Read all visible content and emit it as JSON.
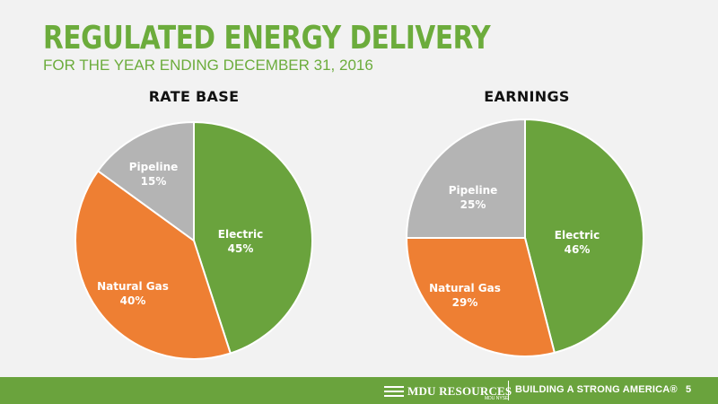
{
  "header": {
    "title": "REGULATED ENERGY DELIVERY",
    "subtitle": "FOR THE YEAR ENDING DECEMBER 31, 2016"
  },
  "colors": {
    "title": "#6cac3c",
    "subtitle": "#6cac3c",
    "electric": "#6aa33d",
    "natural_gas": "#ee7f33",
    "pipeline": "#b4b4b4",
    "footer": "#6aa33d",
    "background": "#f2f2f2"
  },
  "chart_data": [
    {
      "type": "pie",
      "title": "RATE BASE",
      "slices": [
        {
          "name": "Electric",
          "value": 45,
          "value_label": "45%",
          "color": "#6aa33d"
        },
        {
          "name": "Natural Gas",
          "value": 40,
          "value_label": "40%",
          "color": "#ee7f33"
        },
        {
          "name": "Pipeline",
          "value": 15,
          "value_label": "15%",
          "color": "#b4b4b4"
        }
      ]
    },
    {
      "type": "pie",
      "title": "EARNINGS",
      "slices": [
        {
          "name": "Electric",
          "value": 46,
          "value_label": "46%",
          "color": "#6aa33d"
        },
        {
          "name": "Natural Gas",
          "value": 29,
          "value_label": "29%",
          "color": "#ee7f33"
        },
        {
          "name": "Pipeline",
          "value": 25,
          "value_label": "25%",
          "color": "#b4b4b4"
        }
      ]
    }
  ],
  "footer": {
    "logo_text": "MDU RESOURCES",
    "logo_ticker": "MDU NYSE",
    "logo_icon": "mdu-logo-icon",
    "tagline": "BUILDING A STRONG AMERICA®",
    "page_number": "5"
  }
}
